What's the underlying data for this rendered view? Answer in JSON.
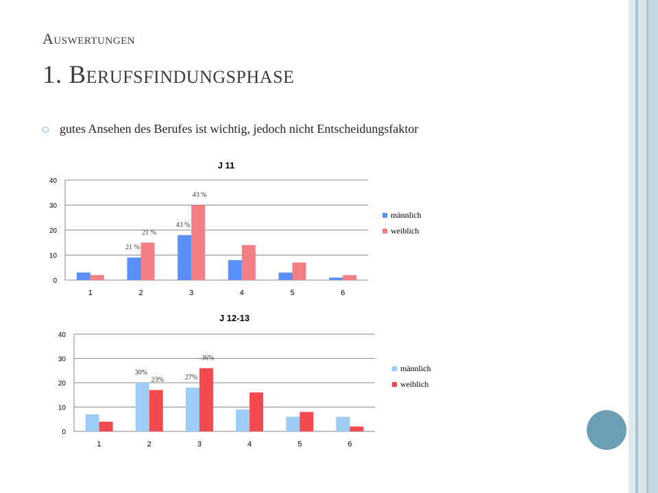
{
  "slide": {
    "subtitle": "Auswertungen",
    "title": "1. Berufsfindungsphase",
    "bullet": "gutes Ansehen des Berufes ist wichtig, jedoch nicht Entscheidungsfaktor"
  },
  "colors": {
    "accent_blue": "#6c9eb4",
    "bullet_ring": "#7fb8d8",
    "c1_male": "#5b8ff9",
    "c1_female": "#f27f84",
    "c2_male": "#9dcdf6",
    "c2_female": "#f24a4f"
  },
  "chart_data": [
    {
      "type": "bar",
      "title": "J 11",
      "categories": [
        "1",
        "2",
        "3",
        "4",
        "5",
        "6"
      ],
      "series": [
        {
          "name": "männlich",
          "values": [
            3,
            9,
            18,
            8,
            3,
            1
          ]
        },
        {
          "name": "weiblich",
          "values": [
            2,
            15,
            30,
            14,
            7,
            2
          ]
        }
      ],
      "ylim": [
        0,
        40
      ],
      "yticks": [
        0,
        10,
        20,
        30,
        40
      ],
      "grid": true,
      "legend": "right",
      "annotations": [
        {
          "category": "2",
          "series": "männlich",
          "text": "21 %"
        },
        {
          "category": "2",
          "series": "weiblich",
          "text": "21 %"
        },
        {
          "category": "3",
          "series": "männlich",
          "text": "43 %"
        },
        {
          "category": "3",
          "series": "weiblich",
          "text": "43 %"
        }
      ]
    },
    {
      "type": "bar",
      "title": "J 12-13",
      "categories": [
        "1",
        "2",
        "3",
        "4",
        "5",
        "6"
      ],
      "series": [
        {
          "name": "männlich",
          "values": [
            7,
            20,
            18,
            9,
            6,
            6
          ]
        },
        {
          "name": "weiblich",
          "values": [
            4,
            17,
            26,
            16,
            8,
            2
          ]
        }
      ],
      "ylim": [
        0,
        40
      ],
      "yticks": [
        0,
        10,
        20,
        30,
        40
      ],
      "grid": true,
      "legend": "right",
      "annotations": [
        {
          "category": "2",
          "series": "männlich",
          "text": "30%"
        },
        {
          "category": "2",
          "series": "weiblich",
          "text": "23%"
        },
        {
          "category": "3",
          "series": "männlich",
          "text": "27%"
        },
        {
          "category": "3",
          "series": "weiblich",
          "text": "36%"
        }
      ]
    }
  ]
}
